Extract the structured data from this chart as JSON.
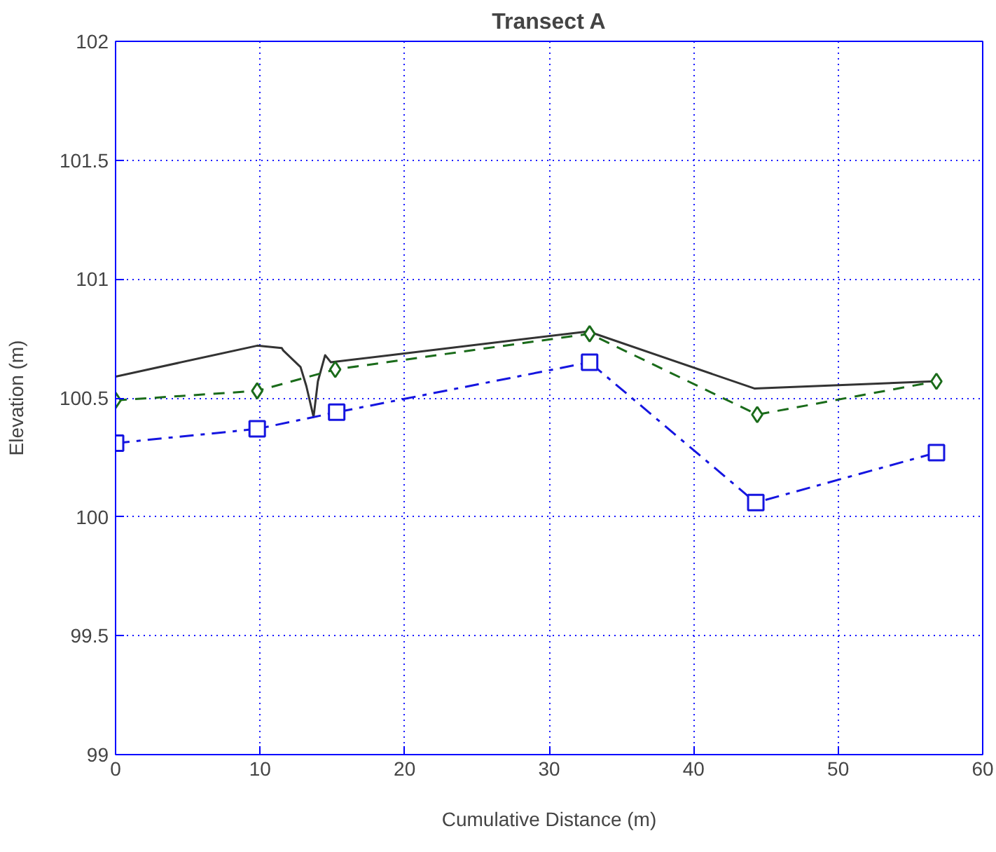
{
  "chart_data": {
    "type": "line",
    "title": "Transect A",
    "xlabel": "Cumulative Distance (m)",
    "ylabel": "Elevation (m)",
    "xlim": [
      0,
      60
    ],
    "xticks": [
      0,
      10,
      20,
      30,
      40,
      50,
      60
    ],
    "ylim": [
      99,
      102
    ],
    "yticks": [
      99,
      99.5,
      100,
      100.5,
      101,
      101.5,
      102
    ],
    "grid": true,
    "series": [
      {
        "color": "#333333",
        "marker": "none",
        "line_style": "solid",
        "x": [
          0,
          9.8,
          11.5,
          11.6,
          12.8,
          13.2,
          13.7,
          14.0,
          14.5,
          14.9,
          32.7,
          44.2,
          56.6
        ],
        "values": [
          100.59,
          100.72,
          100.71,
          100.7,
          100.63,
          100.55,
          100.42,
          100.57,
          100.68,
          100.65,
          100.78,
          100.54,
          100.57
        ]
      },
      {
        "color": "#1a6b1a",
        "marker": "diamond",
        "line_style": "dashed",
        "x": [
          0,
          9.8,
          15.2,
          32.8,
          44.4,
          56.8
        ],
        "values": [
          100.49,
          100.53,
          100.62,
          100.77,
          100.43,
          100.57
        ]
      },
      {
        "color": "#1515e0",
        "marker": "square",
        "line_style": "dashdot",
        "x": [
          0,
          9.8,
          15.3,
          32.8,
          44.3,
          56.8
        ],
        "values": [
          100.31,
          100.37,
          100.44,
          100.65,
          100.06,
          100.27
        ]
      }
    ]
  }
}
